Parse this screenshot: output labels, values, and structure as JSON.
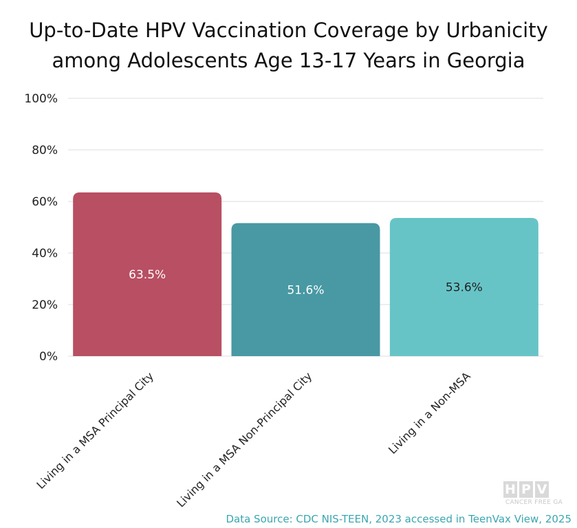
{
  "chart_data": {
    "type": "bar",
    "title_lines": [
      "Up-to-Date HPV Vaccination Coverage by Urbanicity",
      "among Adolescents Age 13-17 Years in Georgia"
    ],
    "categories": [
      "Living in a MSA Principal City",
      "Living in a MSA Non-Principal City",
      "Living in a Non-MSA"
    ],
    "values": [
      63.5,
      51.6,
      53.6
    ],
    "data_labels": [
      "63.5%",
      "51.6%",
      "53.6%"
    ],
    "colors": [
      "#b84f63",
      "#4899a3",
      "#67c4c6"
    ],
    "label_colors": [
      "#ffffff",
      "#ffffff",
      "#222222"
    ],
    "ylim": [
      0,
      100
    ],
    "yticks": [
      0,
      20,
      40,
      60,
      80,
      100
    ],
    "ytick_labels": [
      "0%",
      "20%",
      "40%",
      "60%",
      "80%",
      "100%"
    ],
    "grid": true,
    "xlabel": "",
    "ylabel": ""
  },
  "source": {
    "text": "Data Source: CDC NIS-TEEN, 2023 accessed in TeenVax View, 2025",
    "color": "#3aa6b0"
  },
  "logo": {
    "letters": [
      "H",
      "P",
      "V"
    ],
    "subtitle": "CANCER FREE GA"
  }
}
